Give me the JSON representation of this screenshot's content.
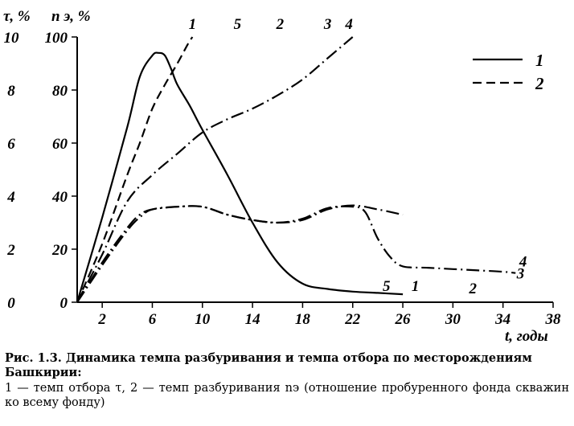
{
  "chart_data": {
    "type": "line",
    "y_left_label": "τ, %",
    "y_right_label": "n э, %",
    "x_label": "t, годы",
    "x_ticks": [
      2,
      6,
      10,
      14,
      18,
      22,
      26,
      30,
      34,
      38
    ],
    "y_left_ticks": [
      0,
      2,
      4,
      6,
      8,
      10
    ],
    "y_right_ticks": [
      0,
      20,
      40,
      60,
      80,
      100
    ],
    "xlim": [
      0,
      38
    ],
    "ylim_left": [
      0,
      10
    ],
    "ylim_right": [
      0,
      100
    ],
    "legend": [
      {
        "label": "1",
        "style": "solid"
      },
      {
        "label": "2",
        "style": "dashed"
      }
    ],
    "legend_position": "top-right",
    "series": [
      {
        "label": "1",
        "style": "solid",
        "axis": "left",
        "end_label": "1",
        "x": [
          0,
          2,
          4,
          5,
          6,
          6.5,
          7,
          7.5,
          8,
          9,
          10,
          12,
          14,
          16,
          18,
          20,
          22,
          24,
          26
        ],
        "y": [
          0,
          3.2,
          6.6,
          8.5,
          9.3,
          9.4,
          9.3,
          8.8,
          8.2,
          7.4,
          6.5,
          4.8,
          3.0,
          1.5,
          0.7,
          0.5,
          0.4,
          0.35,
          0.3
        ]
      },
      {
        "label": "2",
        "style": "dashed",
        "axis": "right",
        "end_label": "1",
        "x": [
          0,
          2,
          4,
          5,
          6,
          7,
          8,
          8.8,
          9.2
        ],
        "y": [
          0,
          22,
          48,
          60,
          73,
          82,
          90,
          97,
          100
        ]
      },
      {
        "label": "3",
        "style": "dash-dot",
        "axis": "right",
        "end_label": "3",
        "x": [
          0,
          2,
          4,
          6,
          8,
          10,
          12,
          14,
          16,
          18,
          20,
          22
        ],
        "y": [
          0,
          18,
          38,
          48,
          56,
          64,
          69,
          73,
          78,
          84,
          92,
          100
        ]
      },
      {
        "label": "4",
        "style": "dash-dot",
        "axis": "left",
        "end_label": "4",
        "x": [
          0,
          2,
          4,
          5,
          6,
          8,
          10,
          12,
          14,
          16,
          18,
          20,
          22,
          23,
          24,
          25,
          26,
          28,
          30,
          32,
          34,
          35
        ],
        "y": [
          0,
          1.5,
          2.8,
          3.3,
          3.5,
          3.6,
          3.6,
          3.3,
          3.1,
          3.0,
          3.15,
          3.55,
          3.6,
          3.4,
          2.4,
          1.7,
          1.35,
          1.3,
          1.25,
          1.2,
          1.15,
          1.1
        ]
      },
      {
        "label": "5",
        "style": "dash-dot",
        "axis": "left",
        "end_label": "5",
        "x": [
          0,
          2,
          4,
          5,
          6,
          8,
          10,
          12,
          14,
          16,
          18,
          20,
          22,
          24,
          26
        ],
        "y": [
          0,
          1.4,
          2.7,
          3.2,
          3.5,
          3.6,
          3.6,
          3.3,
          3.1,
          3.0,
          3.1,
          3.5,
          3.65,
          3.5,
          3.3
        ]
      }
    ],
    "curve_labels": [
      {
        "text": "1",
        "near": "top",
        "x": 9.2
      },
      {
        "text": "5",
        "near": "top",
        "x": 12.8
      },
      {
        "text": "2",
        "near": "top",
        "x": 16.2
      },
      {
        "text": "3",
        "near": "top",
        "x": 20
      },
      {
        "text": "4",
        "near": "top",
        "x": 21.7
      },
      {
        "text": "5",
        "near": "bottom",
        "x": 24.7
      },
      {
        "text": "1",
        "near": "bottom",
        "x": 27
      },
      {
        "text": "2",
        "near": "bottom",
        "x": 31.6
      },
      {
        "text": "4",
        "near": "right",
        "x": 35.6
      },
      {
        "text": "3",
        "near": "right",
        "x": 35.4
      }
    ]
  },
  "caption": {
    "title": "Рис. 1.3.  Динамика темпа разбуривания и темпа отбора по месторождениям Башкирии:",
    "body": "1 — темп отбора τ, 2 — темп разбуривания nэ (отношение пробуренного фонда скважин ко всему фонду)"
  }
}
